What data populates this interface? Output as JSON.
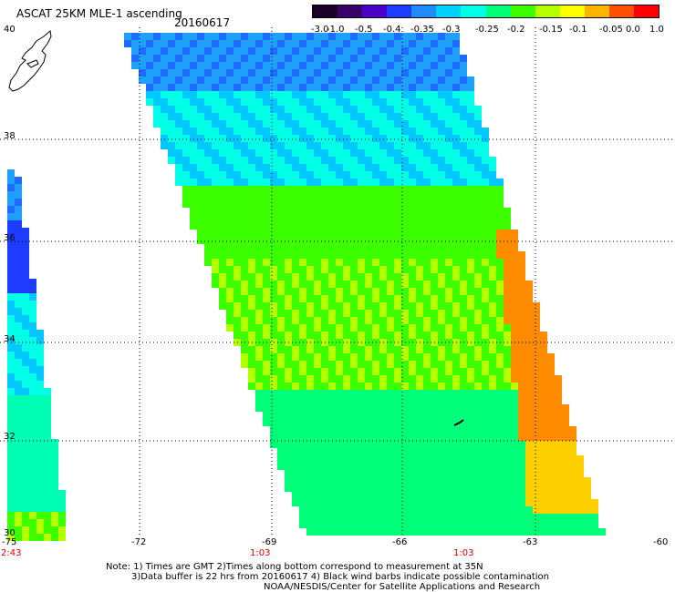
{
  "header": {
    "title": "ASCAT 25KM MLE-1 ascending",
    "date": "20160617"
  },
  "colorbar": {
    "labels": [
      "-3.0",
      "-1.0",
      "-0.5",
      "-0.4",
      "-0.35",
      "-0.3",
      "-0.25",
      "-0.2",
      "-0.15",
      "-0.1",
      "-0.05",
      "0.0",
      "1.0"
    ],
    "colors": [
      "#1a0026",
      "#3a006a",
      "#4a00c8",
      "#1e3cff",
      "#1e8cff",
      "#00d2ff",
      "#00ffe6",
      "#00ff78",
      "#3cff00",
      "#b4ff00",
      "#ffff00",
      "#ffb400",
      "#ff5000",
      "#ff0000"
    ]
  },
  "axes": {
    "lat_labels": [
      "40",
      "38",
      "36",
      "34",
      "32",
      "30"
    ],
    "lon_labels": [
      "-75",
      "-72",
      "-69",
      "-66",
      "-63",
      "-60"
    ],
    "time_labels": [
      "2:43",
      "1:03",
      "1:03"
    ]
  },
  "notes": {
    "line1": "Note: 1) Times are GMT 2)Times along bottom correspond to measurement at 35N",
    "line2": "3)Data buffer is 22 hrs from 20160617 4) Black wind barbs indicate possible contamination",
    "line3": "NOAA/NESDIS/Center for Satellite Applications and Research"
  }
}
